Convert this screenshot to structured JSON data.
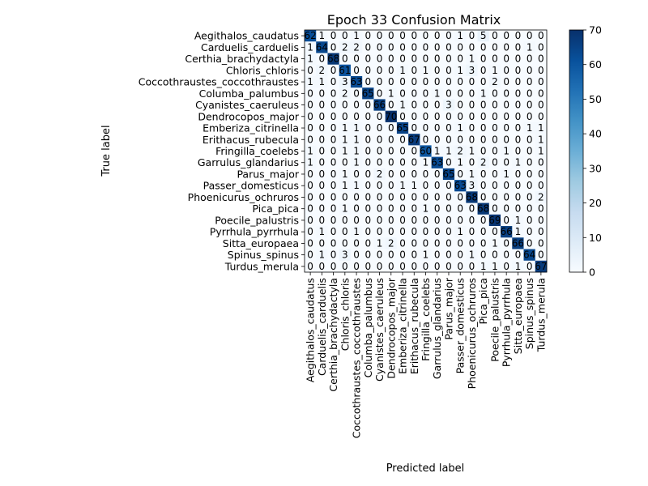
{
  "chart_data": {
    "type": "heatmap",
    "title": "Epoch 33 Confusion Matrix",
    "xlabel": "Predicted label",
    "ylabel": "True label",
    "labels": [
      "Aegithalos_caudatus",
      "Carduelis_carduelis",
      "Certhia_brachydactyla",
      "Chloris_chloris",
      "Coccothraustes_coccothraustes",
      "Columba_palumbus",
      "Cyanistes_caeruleus",
      "Dendrocopos_major",
      "Emberiza_citrinella",
      "Erithacus_rubecula",
      "Fringilla_coelebs",
      "Garrulus_glandarius",
      "Parus_major",
      "Passer_domesticus",
      "Phoenicurus_ochruros",
      "Pica_pica",
      "Poecile_palustris",
      "Pyrrhula_pyrrhula",
      "Sitta_europaea",
      "Spinus_spinus",
      "Turdus_merula"
    ],
    "matrix": [
      [
        62,
        1,
        0,
        0,
        1,
        0,
        0,
        0,
        0,
        0,
        0,
        0,
        0,
        1,
        0,
        5,
        0,
        0,
        0,
        0,
        0
      ],
      [
        1,
        64,
        0,
        2,
        2,
        0,
        0,
        0,
        0,
        0,
        0,
        0,
        0,
        0,
        0,
        0,
        0,
        0,
        0,
        1,
        0
      ],
      [
        1,
        0,
        68,
        0,
        0,
        0,
        0,
        0,
        0,
        0,
        0,
        0,
        0,
        0,
        1,
        0,
        0,
        0,
        0,
        0,
        0
      ],
      [
        0,
        2,
        0,
        61,
        0,
        0,
        0,
        0,
        1,
        0,
        1,
        0,
        0,
        1,
        3,
        0,
        1,
        0,
        0,
        0,
        0
      ],
      [
        1,
        1,
        0,
        3,
        63,
        0,
        0,
        0,
        0,
        0,
        0,
        0,
        0,
        0,
        0,
        0,
        2,
        0,
        0,
        0,
        0
      ],
      [
        0,
        0,
        0,
        2,
        0,
        65,
        0,
        1,
        0,
        0,
        0,
        1,
        0,
        0,
        0,
        1,
        0,
        0,
        0,
        0,
        0
      ],
      [
        0,
        0,
        0,
        0,
        0,
        0,
        66,
        0,
        1,
        0,
        0,
        0,
        3,
        0,
        0,
        0,
        0,
        0,
        0,
        0,
        0
      ],
      [
        0,
        0,
        0,
        0,
        0,
        0,
        0,
        70,
        0,
        0,
        0,
        0,
        0,
        0,
        0,
        0,
        0,
        0,
        0,
        0,
        0
      ],
      [
        0,
        0,
        0,
        1,
        1,
        0,
        0,
        0,
        65,
        0,
        0,
        0,
        0,
        1,
        0,
        0,
        0,
        0,
        0,
        1,
        1
      ],
      [
        0,
        0,
        0,
        1,
        1,
        0,
        0,
        0,
        0,
        67,
        0,
        0,
        0,
        0,
        0,
        0,
        0,
        0,
        0,
        0,
        1
      ],
      [
        1,
        0,
        0,
        1,
        1,
        0,
        0,
        0,
        0,
        0,
        60,
        1,
        1,
        2,
        1,
        0,
        0,
        1,
        0,
        0,
        1
      ],
      [
        1,
        0,
        0,
        0,
        1,
        0,
        0,
        0,
        0,
        0,
        1,
        63,
        0,
        1,
        0,
        2,
        0,
        0,
        1,
        0,
        0
      ],
      [
        0,
        0,
        0,
        1,
        0,
        0,
        2,
        0,
        0,
        0,
        0,
        0,
        65,
        0,
        1,
        0,
        0,
        1,
        0,
        0,
        0
      ],
      [
        0,
        0,
        0,
        1,
        1,
        0,
        0,
        0,
        1,
        1,
        0,
        0,
        0,
        63,
        3,
        0,
        0,
        0,
        0,
        0,
        0
      ],
      [
        0,
        0,
        0,
        0,
        0,
        0,
        0,
        0,
        0,
        0,
        0,
        0,
        0,
        0,
        68,
        0,
        0,
        0,
        0,
        0,
        2
      ],
      [
        0,
        0,
        0,
        1,
        0,
        0,
        0,
        0,
        0,
        0,
        1,
        0,
        0,
        0,
        0,
        68,
        0,
        0,
        0,
        0,
        0
      ],
      [
        0,
        0,
        0,
        0,
        0,
        0,
        0,
        0,
        0,
        0,
        0,
        0,
        0,
        0,
        0,
        0,
        69,
        0,
        1,
        0,
        0
      ],
      [
        0,
        1,
        0,
        0,
        1,
        0,
        0,
        0,
        0,
        0,
        0,
        0,
        0,
        1,
        0,
        0,
        0,
        66,
        1,
        0,
        0
      ],
      [
        0,
        0,
        0,
        0,
        0,
        0,
        1,
        2,
        0,
        0,
        0,
        0,
        0,
        0,
        0,
        0,
        1,
        0,
        66,
        0,
        0
      ],
      [
        0,
        1,
        0,
        3,
        0,
        0,
        0,
        0,
        0,
        0,
        1,
        0,
        0,
        0,
        1,
        0,
        0,
        0,
        0,
        64,
        0
      ],
      [
        0,
        0,
        0,
        0,
        0,
        0,
        0,
        0,
        0,
        0,
        0,
        0,
        0,
        0,
        0,
        1,
        1,
        0,
        1,
        0,
        67
      ]
    ],
    "colorbar": {
      "range": [
        0,
        70
      ],
      "ticks": [
        0,
        10,
        20,
        30,
        40,
        50,
        60,
        70
      ],
      "colormap": "Blues"
    }
  }
}
